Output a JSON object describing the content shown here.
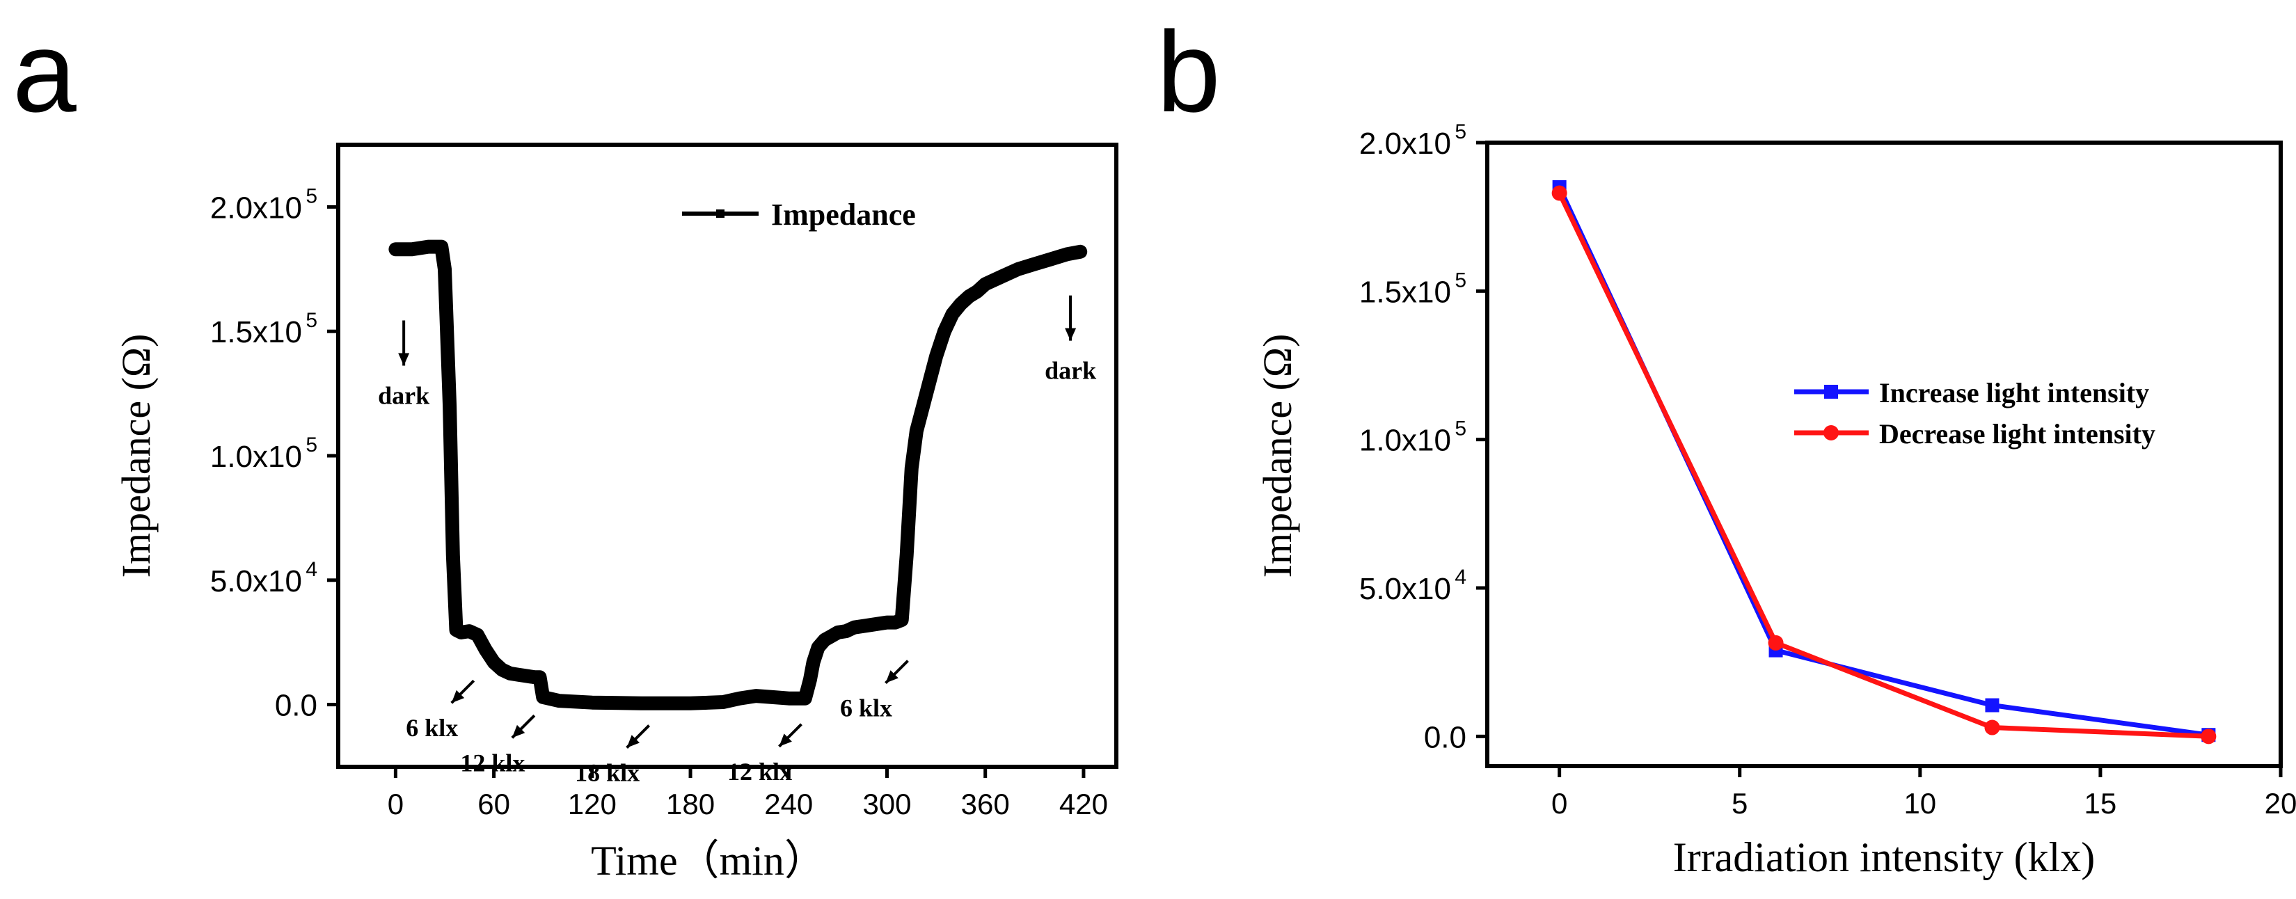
{
  "panels": [
    {
      "letter": "a",
      "legend": "Impedance",
      "xlabel": "Time（min）",
      "ylabel": "Impedance (Ω)",
      "xticks": [
        {
          "v": 0,
          "label": "0"
        },
        {
          "v": 60,
          "label": "60"
        },
        {
          "v": 120,
          "label": "120"
        },
        {
          "v": 180,
          "label": "180"
        },
        {
          "v": 240,
          "label": "240"
        },
        {
          "v": 300,
          "label": "300"
        },
        {
          "v": 360,
          "label": "360"
        },
        {
          "v": 420,
          "label": "420"
        }
      ],
      "yticks": [
        {
          "v": 0,
          "mant": "0.0",
          "exp": ""
        },
        {
          "v": 50000,
          "mant": "5.0x10",
          "exp": "4"
        },
        {
          "v": 100000,
          "mant": "1.0x10",
          "exp": "5"
        },
        {
          "v": 150000,
          "mant": "1.5x10",
          "exp": "5"
        },
        {
          "v": 200000,
          "mant": "2.0x10",
          "exp": "5"
        }
      ],
      "annotations": [
        {
          "text": "dark",
          "x": 5,
          "y": 160000
        },
        {
          "text": "6 klx",
          "x": 35,
          "y": 18000
        },
        {
          "text": "12 klx",
          "x": 72,
          "y": 4000
        },
        {
          "text": "18 klx",
          "x": 142,
          "y": 0
        },
        {
          "text": "12 klx",
          "x": 235,
          "y": 500
        },
        {
          "text": "6 klx",
          "x": 300,
          "y": 26000
        },
        {
          "text": "dark",
          "x": 412,
          "y": 170000
        }
      ]
    },
    {
      "letter": "b",
      "xlabel": "Irradiation intensity (klx)",
      "ylabel": "Impedance (Ω)",
      "xticks": [
        {
          "v": 0,
          "label": "0"
        },
        {
          "v": 5,
          "label": "5"
        },
        {
          "v": 10,
          "label": "10"
        },
        {
          "v": 15,
          "label": "15"
        },
        {
          "v": 20,
          "label": "20"
        }
      ],
      "yticks": [
        {
          "v": 0,
          "mant": "0.0",
          "exp": ""
        },
        {
          "v": 50000,
          "mant": "5.0x10",
          "exp": "4"
        },
        {
          "v": 100000,
          "mant": "1.0x10",
          "exp": "5"
        },
        {
          "v": 150000,
          "mant": "1.5x10",
          "exp": "5"
        },
        {
          "v": 200000,
          "mant": "2.0x10",
          "exp": "5"
        }
      ]
    }
  ],
  "chart_data": [
    {
      "type": "line",
      "xlabel": "Time（min）",
      "ylabel": "Impedance (Ω)",
      "xlim": [
        -35,
        440
      ],
      "ylim": [
        -25000,
        225000
      ],
      "legend": "top-center",
      "grid": false,
      "series": [
        {
          "name": "Impedance",
          "color": "#000000",
          "x": [
            0,
            10,
            20,
            28,
            30,
            33,
            35,
            37,
            40,
            45,
            50,
            55,
            60,
            65,
            70,
            75,
            80,
            85,
            88,
            90,
            100,
            120,
            150,
            180,
            200,
            210,
            220,
            230,
            240,
            250,
            253,
            255,
            258,
            262,
            266,
            270,
            275,
            280,
            290,
            300,
            305,
            309,
            312,
            315,
            318,
            322,
            326,
            330,
            335,
            340,
            345,
            350,
            355,
            360,
            370,
            380,
            390,
            400,
            410,
            418
          ],
          "y": [
            183000,
            183000,
            184000,
            184000,
            175000,
            120000,
            60000,
            30000,
            29000,
            29500,
            28000,
            22000,
            17000,
            14000,
            12500,
            12000,
            11500,
            11000,
            11000,
            3000,
            1500,
            800,
            500,
            500,
            1000,
            2500,
            3500,
            3000,
            2500,
            2500,
            10000,
            17000,
            23000,
            26000,
            27500,
            29000,
            29500,
            31000,
            32000,
            33000,
            33000,
            34000,
            60000,
            95000,
            110000,
            120000,
            130000,
            140000,
            150000,
            157000,
            161000,
            164000,
            166000,
            169000,
            172000,
            175000,
            177000,
            179000,
            181000,
            182000
          ]
        }
      ]
    },
    {
      "type": "line",
      "xlabel": "Irradiation intensity (klx)",
      "ylabel": "Impedance (Ω)",
      "xlim": [
        -2,
        20
      ],
      "ylim": [
        -10000,
        200000
      ],
      "legend": "right",
      "grid": false,
      "series": [
        {
          "name": "Increase light intensity",
          "color": "#1414ff",
          "marker": "square",
          "x": [
            0,
            6,
            12,
            18
          ],
          "y": [
            185000,
            29000,
            10500,
            500
          ]
        },
        {
          "name": "Decrease light intensity",
          "color": "#ff1414",
          "marker": "circle",
          "x": [
            0,
            6,
            12,
            18
          ],
          "y": [
            183000,
            31500,
            3000,
            0
          ]
        }
      ]
    }
  ]
}
